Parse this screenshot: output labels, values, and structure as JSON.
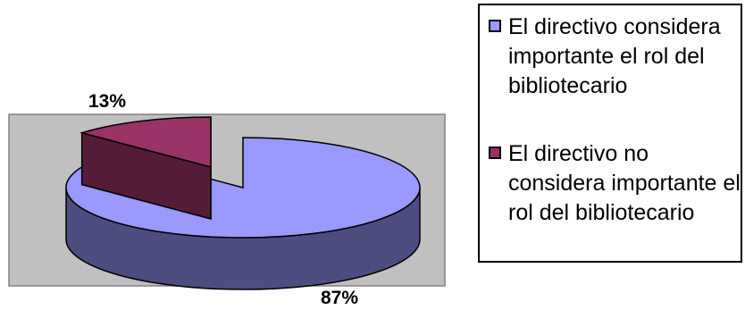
{
  "chart_data": {
    "type": "pie",
    "style": "3d-exploded",
    "categories": [
      "El directivo considera importante el rol del bibliotecario",
      "El directivo no considera importante el rol del bibliotecario"
    ],
    "values": [
      87,
      13
    ],
    "data_labels": [
      "87%",
      "13%"
    ],
    "colors": [
      "#9999ff",
      "#993366"
    ],
    "plot_background": "#c0c0c0",
    "legend_position": "right",
    "title": "",
    "xlabel": "",
    "ylabel": ""
  }
}
